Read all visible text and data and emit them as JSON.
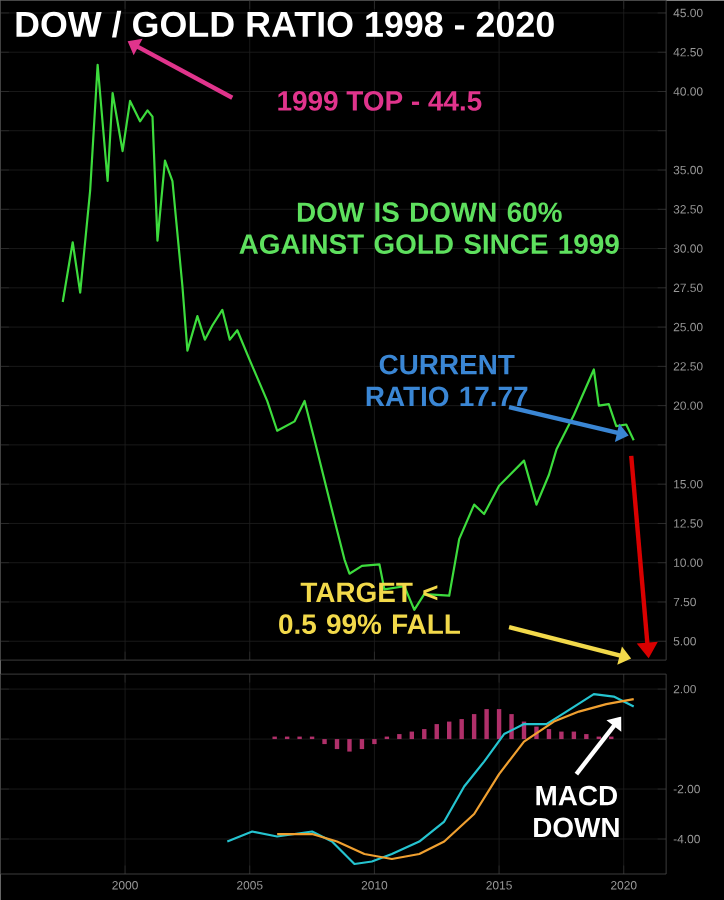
{
  "chart_data": [
    {
      "type": "line",
      "title": "DOW / GOLD RATIO  1998 - 2020",
      "x": [
        1997.5,
        1997.9,
        1998.2,
        1998.6,
        1998.9,
        1999.3,
        1999.5,
        1999.9,
        2000.2,
        2000.6,
        2000.9,
        2001.1,
        2001.3,
        2001.6,
        2001.9,
        2002.3,
        2002.5,
        2002.9,
        2003.2,
        2003.5,
        2003.9,
        2004.2,
        2004.5,
        2005.0,
        2005.7,
        2006.1,
        2006.8,
        2007.2,
        2007.6,
        2008.4,
        2008.8,
        2009.0,
        2009.5,
        2010.2,
        2010.4,
        2011.2,
        2011.6,
        2012.0,
        2013.0,
        2013.4,
        2014.0,
        2014.4,
        2015.0,
        2016.0,
        2016.5,
        2017.0,
        2017.3,
        2018.0,
        2018.8,
        2019.0,
        2019.4,
        2019.7,
        2020.1,
        2020.4
      ],
      "series": [
        {
          "color": "#3ddc3d",
          "values": [
            26.6,
            30.4,
            27.2,
            33.7,
            41.7,
            34.3,
            39.9,
            36.2,
            39.4,
            38.1,
            38.8,
            38.4,
            30.5,
            35.6,
            34.3,
            27.6,
            23.5,
            25.7,
            24.2,
            25.1,
            26.1,
            24.2,
            24.8,
            22.9,
            20.3,
            18.4,
            19.0,
            20.3,
            17.8,
            12.7,
            10.2,
            9.3,
            9.8,
            9.9,
            8.3,
            8.5,
            7.0,
            8.0,
            7.9,
            11.5,
            13.7,
            13.1,
            14.9,
            16.5,
            13.7,
            15.6,
            17.2,
            19.4,
            22.3,
            20.0,
            20.1,
            18.7,
            18.8,
            17.8
          ]
        }
      ],
      "xlim": [
        1995,
        2021.7
      ],
      "ylim": [
        3.8,
        45.8
      ],
      "xticks": [
        2000,
        2005,
        2010,
        2015,
        2020
      ],
      "yticks": [
        {
          "value": 5,
          "label": "5.00"
        },
        {
          "value": 7.5,
          "label": "7.50"
        },
        {
          "value": 10,
          "label": "10.00"
        },
        {
          "value": 12.5,
          "label": "12.50"
        },
        {
          "value": 15,
          "label": "15.00"
        },
        {
          "value": 17.5,
          "label": null
        },
        {
          "value": 20,
          "label": "20.00"
        },
        {
          "value": 22.5,
          "label": "22.50"
        },
        {
          "value": 25,
          "label": "25.00"
        },
        {
          "value": 27.5,
          "label": "27.50"
        },
        {
          "value": 30,
          "label": "30.00"
        },
        {
          "value": 32.5,
          "label": "32.50"
        },
        {
          "value": 35,
          "label": "35.00"
        },
        {
          "value": 37.5,
          "label": null
        },
        {
          "value": 40,
          "label": "40.00"
        },
        {
          "value": 42.5,
          "label": "42.50"
        },
        {
          "value": 45,
          "label": "45.00"
        }
      ],
      "tick_labels": "y",
      "grid": true,
      "annotations": [
        "1999 TOP - 44.5",
        "DOW IS DOWN 60% AGAINST GOLD SINCE 1999",
        {
          "text": "CURRENT RATIO 17.77",
          "x": 2020.2,
          "y": 18.1
        },
        "TARGET < 0.5 99% FALL"
      ]
    },
    {
      "type": "line",
      "series": [
        {
          "type": "bar",
          "color": "#b0306a",
          "x": [
            2006,
            2006.5,
            2007,
            2007.5,
            2008,
            2008.5,
            2009,
            2009.5,
            2010,
            2010.5,
            2011,
            2011.5,
            2012,
            2012.5,
            2013,
            2013.5,
            2014,
            2014.5,
            2015,
            2015.5,
            2016,
            2016.5,
            2017,
            2017.5,
            2018,
            2018.5,
            2019,
            2019.5,
            2020
          ],
          "values": [
            0.1,
            0.1,
            0.1,
            0.1,
            -0.2,
            -0.4,
            -0.5,
            -0.4,
            -0.2,
            0.1,
            0.2,
            0.3,
            0.4,
            0.6,
            0.7,
            0.8,
            1.0,
            1.2,
            1.2,
            1.0,
            0.7,
            0.5,
            0.4,
            0.3,
            0.3,
            0.2,
            0.1,
            0.1,
            0.0
          ]
        },
        {
          "color": "#25c4d0",
          "x": [
            2004.1,
            2005.1,
            2006.1,
            2007.5,
            2008.3,
            2009.2,
            2009.9,
            2010.7,
            2011.8,
            2012.8,
            2013.6,
            2014.4,
            2015.2,
            2016.0,
            2016.9,
            2017.7,
            2018.8,
            2019.6,
            2020.4
          ],
          "values": [
            -4.1,
            -3.7,
            -3.9,
            -3.7,
            -4.1,
            -5.0,
            -4.9,
            -4.6,
            -4.1,
            -3.3,
            -1.9,
            -0.9,
            0.2,
            0.6,
            0.6,
            1.1,
            1.8,
            1.7,
            1.3
          ]
        },
        {
          "color": "#f0a030",
          "x": [
            2006.1,
            2007.5,
            2008.5,
            2009.6,
            2010.7,
            2011.8,
            2012.8,
            2014.0,
            2015.0,
            2016.0,
            2017.2,
            2018.2,
            2019.3,
            2020.4
          ],
          "values": [
            -3.8,
            -3.8,
            -4.1,
            -4.6,
            -4.8,
            -4.6,
            -4.1,
            -3.0,
            -1.4,
            -0.1,
            0.7,
            1.1,
            1.4,
            1.6
          ]
        }
      ],
      "xlim": [
        1995,
        2021.7
      ],
      "ylim": [
        -5.4,
        2.6
      ],
      "xticks": [
        2000,
        2005,
        2010,
        2015,
        2020
      ],
      "yticks": [
        {
          "value": -4,
          "label": "-4.00"
        },
        {
          "value": -2,
          "label": "-2.00"
        },
        {
          "value": 0,
          "label": null
        },
        {
          "value": 2,
          "label": "2.00"
        }
      ],
      "grid": true,
      "annotations": [
        "MACD DOWN"
      ]
    }
  ]
}
